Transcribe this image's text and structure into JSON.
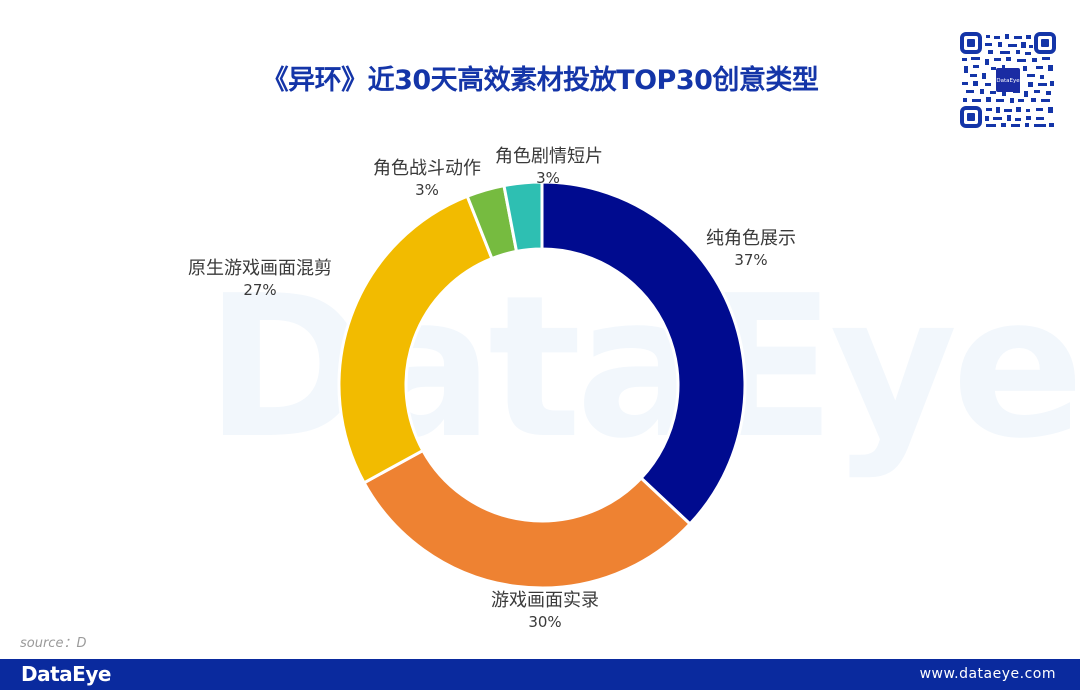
{
  "header": {
    "title": "《异环》近30天高效素材投放TOP30创意类型",
    "qr_center_text": "DataEye"
  },
  "watermark": {
    "text": "DataEye"
  },
  "chart_data": {
    "type": "pie",
    "variant": "donut",
    "title": "《异环》近30天高效素材投放TOP30创意类型",
    "categories": [
      "纯角色展示",
      "游戏画面实录",
      "原生游戏画面混剪",
      "角色战斗动作",
      "角色剧情短片"
    ],
    "values": [
      37,
      30,
      27,
      3,
      3
    ],
    "unit": "%",
    "colors": [
      "#000b8f",
      "#ee8232",
      "#f2bb00",
      "#76bb40",
      "#2ebfb2"
    ],
    "start_angle_deg": 0,
    "direction": "clockwise",
    "legend": "none (data labels outside slices)",
    "labels": [
      {
        "name": "纯角色展示",
        "pct": "37%"
      },
      {
        "name": "游戏画面实录",
        "pct": "30%"
      },
      {
        "name": "原生游戏画面混剪",
        "pct": "27%"
      },
      {
        "name": "角色战斗动作",
        "pct": "3%"
      },
      {
        "name": "角色剧情短片",
        "pct": "3%"
      }
    ]
  },
  "footer": {
    "source": "source：D",
    "logo": "DataEye",
    "url": "www.dataeye.com"
  }
}
